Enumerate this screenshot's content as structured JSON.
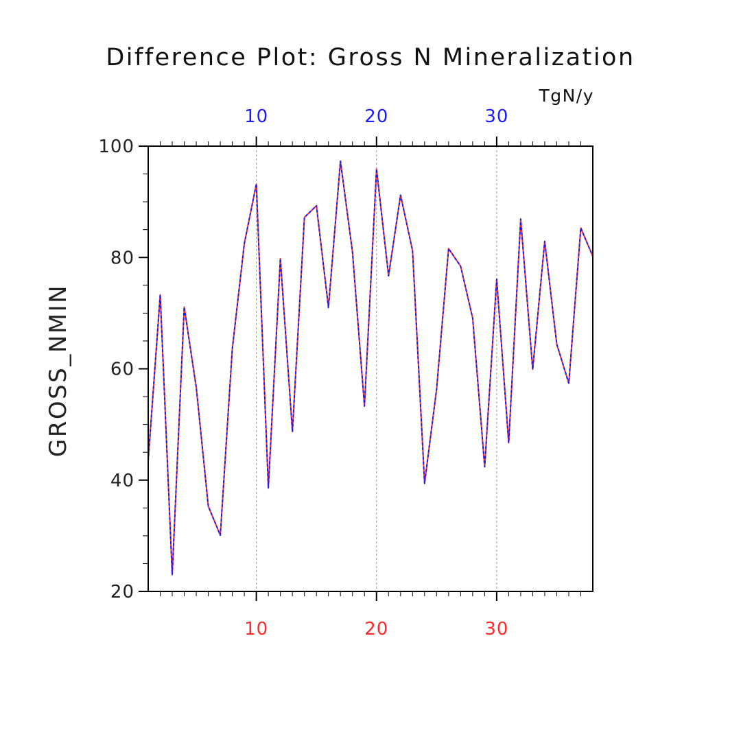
{
  "colors": {
    "primary_series": "#ff2a2a",
    "secondary_series": "#1a1aff",
    "axis": "#000000",
    "grid": "#999999",
    "bottom_tick_label": "#ff2a2a",
    "top_tick_label": "#1a1aff"
  },
  "chart_data": {
    "type": "line",
    "title": "Difference Plot: Gross N Mineralization",
    "units": "TgN/y",
    "ylabel": "GROSS_NMIN",
    "xlabel": "",
    "xlim": [
      1,
      38
    ],
    "ylim": [
      20,
      100
    ],
    "x_ticks": [
      10,
      20,
      30
    ],
    "y_ticks": [
      20,
      40,
      60,
      80,
      100
    ],
    "grid": "vertical dashed lines at major x ticks",
    "x": [
      1,
      2,
      3,
      4,
      5,
      6,
      7,
      8,
      9,
      10,
      11,
      12,
      13,
      14,
      15,
      16,
      17,
      18,
      19,
      20,
      21,
      22,
      23,
      24,
      25,
      26,
      27,
      28,
      29,
      30,
      31,
      32,
      33,
      34,
      35,
      36,
      37,
      38
    ],
    "series": [
      {
        "role": "bottom axis",
        "style": "solid",
        "values": [
          43.5,
          73.3,
          23.0,
          71.1,
          56.6,
          35.3,
          30.1,
          63.6,
          82.5,
          93.2,
          38.6,
          79.8,
          48.7,
          87.2,
          89.3,
          71.0,
          97.3,
          81.0,
          53.3,
          95.9,
          76.7,
          91.2,
          81.2,
          39.4,
          56.3,
          81.6,
          78.4,
          69.1,
          42.4,
          76.1,
          46.7,
          86.9,
          59.9,
          82.9,
          64.4,
          57.4,
          85.3,
          80.2
        ]
      },
      {
        "role": "top axis",
        "style": "dashed",
        "values": [
          43.5,
          73.3,
          23.0,
          71.1,
          56.6,
          35.3,
          30.1,
          63.6,
          82.5,
          93.2,
          38.6,
          79.8,
          48.7,
          87.2,
          89.3,
          71.0,
          97.3,
          81.0,
          53.3,
          95.9,
          76.7,
          91.2,
          81.2,
          39.4,
          56.3,
          81.6,
          78.4,
          69.1,
          42.4,
          76.1,
          46.7,
          86.9,
          59.9,
          82.9,
          64.4,
          57.4,
          85.3,
          80.2
        ]
      }
    ]
  }
}
